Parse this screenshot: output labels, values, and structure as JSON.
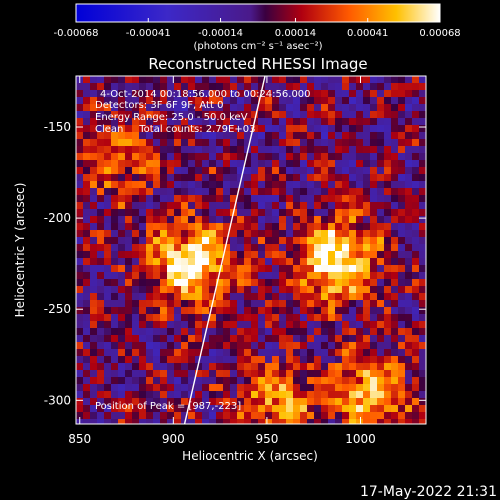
{
  "chart_data": {
    "type": "heatmap",
    "title": "Reconstructed RHESSI Image",
    "xlabel": "Heliocentric X (arcsec)",
    "ylabel": "Heliocentric Y (arcsec)",
    "xlim": [
      848,
      1035
    ],
    "ylim": [
      -313,
      -122
    ],
    "x_ticks": [
      850,
      900,
      950,
      1000
    ],
    "y_ticks": [
      -300,
      -250,
      -200,
      -150
    ],
    "colorbar": {
      "label": "(photons cm⁻² s⁻¹ asec⁻²)",
      "range": [
        -0.00068,
        0.00068
      ],
      "tick_labels": [
        "-0.00068",
        "-0.00041",
        "-0.00014",
        "0.00014",
        "0.00041",
        "0.00068"
      ],
      "tick_values": [
        -0.00068,
        -0.00041,
        -0.00014,
        0.00014,
        0.00041,
        0.00068
      ]
    },
    "annotations": [
      "4-Oct-2014 00:18:56.000 to 00:24:56.000",
      "Detectors: 3F 6F 9F, Att 0",
      "Energy Range: 25.0 - 50.0 keV",
      "Clean     Total counts: 2.79E+03",
      "Position of Peak = [987,-223]"
    ],
    "sources": [
      {
        "x": 910,
        "y": -225,
        "intensity": 0.00068
      },
      {
        "x": 987,
        "y": -223,
        "intensity": 0.00068
      },
      {
        "x": 1005,
        "y": -295,
        "intensity": 0.0005
      },
      {
        "x": 955,
        "y": -300,
        "intensity": 0.0004
      },
      {
        "x": 870,
        "y": -170,
        "intensity": 0.0003
      }
    ],
    "limb_line": [
      [
        906,
        -313
      ],
      [
        949,
        -122
      ]
    ],
    "grid": false
  },
  "footer": {
    "timestamp": "17-May-2022 21:31"
  }
}
